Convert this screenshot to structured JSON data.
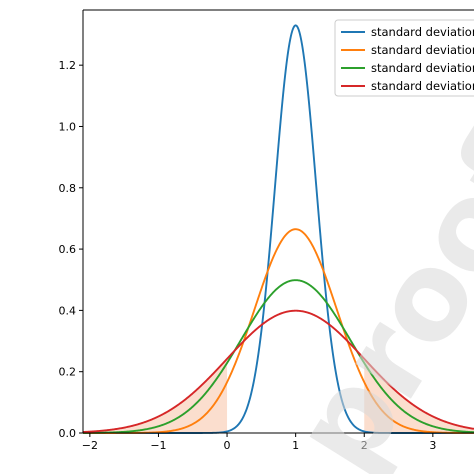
{
  "chart_data": {
    "type": "line",
    "title": "",
    "xlabel": "",
    "ylabel": "",
    "xlim": [
      -2.1,
      3.6
    ],
    "ylim": [
      0,
      1.38
    ],
    "x_ticks": [
      -2,
      -1,
      0,
      1,
      2,
      3
    ],
    "x_tick_labels": [
      "−2",
      "−1",
      "0",
      "1",
      "2",
      "3"
    ],
    "y_ticks": [
      0.0,
      0.2,
      0.4,
      0.6,
      0.8,
      1.0,
      1.2
    ],
    "y_tick_labels": [
      "0.0",
      "0.2",
      "0.4",
      "0.6",
      "0.8",
      "1.0",
      "1.2"
    ],
    "grid": false,
    "legend_position": "top-right",
    "curve": "normal",
    "mean": 1,
    "series": [
      {
        "name": "standard deviation",
        "std": 0.3,
        "color": "#1f77b4"
      },
      {
        "name": "standard deviation",
        "std": 0.6,
        "color": "#ff7f0e"
      },
      {
        "name": "standard deviation",
        "std": 0.8,
        "color": "#2ca02c"
      },
      {
        "name": "standard deviation",
        "std": 1.0,
        "color": "#d62728"
      }
    ],
    "shaded_regions": [
      {
        "series_index": 3,
        "x_from": -2,
        "x_to": 0,
        "color": "#f9c8ad"
      },
      {
        "series_index": 3,
        "x_from": 2,
        "x_to": 3.6,
        "color": "#f9c8ad"
      }
    ],
    "watermark": "proof"
  }
}
